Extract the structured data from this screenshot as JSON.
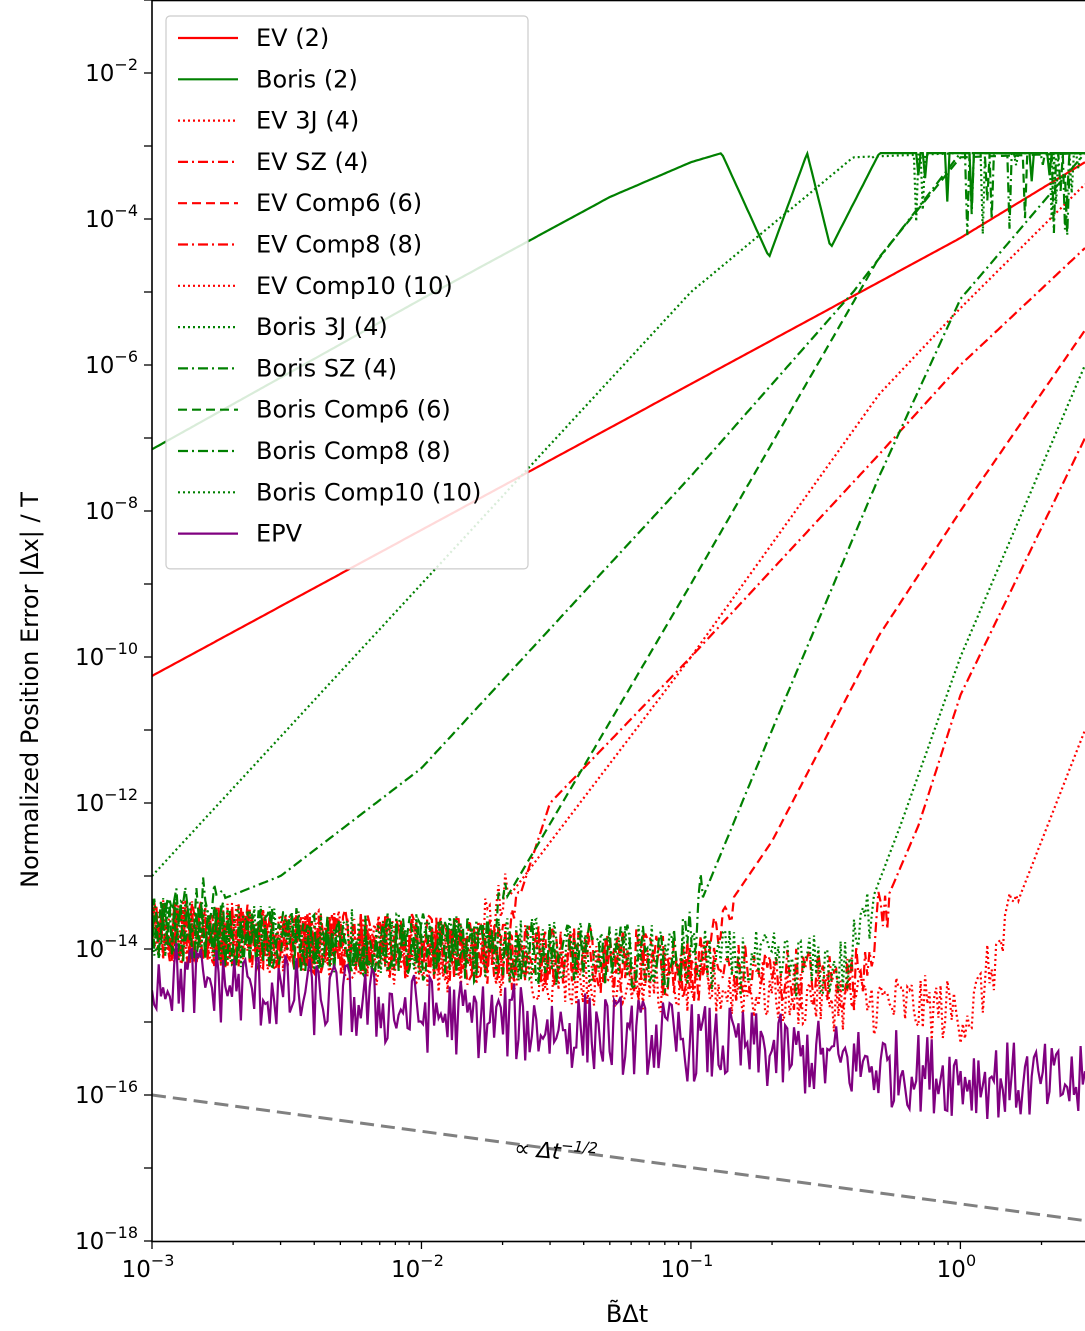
{
  "chart_data": {
    "type": "line",
    "xscale": "log",
    "yscale": "log",
    "xlim": [
      0.001,
      2.9
    ],
    "ylim": [
      1e-18,
      0.1
    ],
    "xlabel": "B̃Δt",
    "ylabel": "Normalized Position Error   |Δx| / T",
    "grid": false,
    "legend_position": "top-left",
    "x_ticks": [
      {
        "value": 0.001,
        "base": "10",
        "exp": "−3"
      },
      {
        "value": 0.01,
        "base": "10",
        "exp": "−2"
      },
      {
        "value": 0.1,
        "base": "10",
        "exp": "−1"
      },
      {
        "value": 1,
        "base": "10",
        "exp": "0"
      }
    ],
    "y_ticks": [
      {
        "value": 0.01,
        "base": "10",
        "exp": "−2"
      },
      {
        "value": 0.0001,
        "base": "10",
        "exp": "−4"
      },
      {
        "value": 1e-06,
        "base": "10",
        "exp": "−6"
      },
      {
        "value": 1e-08,
        "base": "10",
        "exp": "−8"
      },
      {
        "value": 1e-10,
        "base": "10",
        "exp": "−10"
      },
      {
        "value": 1e-12,
        "base": "10",
        "exp": "−12"
      },
      {
        "value": 1e-14,
        "base": "10",
        "exp": "−14"
      },
      {
        "value": 1e-16,
        "base": "10",
        "exp": "−16"
      },
      {
        "value": 1e-18,
        "base": "10",
        "exp": "−18"
      }
    ],
    "series": [
      {
        "name": "EV (2)",
        "color": "#ff0000",
        "dash": "solid",
        "x": [
          0.001,
          0.01,
          0.1,
          1,
          2.9
        ],
        "y": [
          5.5e-11,
          5.5e-09,
          5.5e-07,
          5.5e-05,
          0.0006
        ]
      },
      {
        "name": "Boris (2)",
        "color": "#008000",
        "dash": "solid",
        "x": [
          0.001,
          0.01,
          0.05,
          0.1,
          0.13,
          0.195,
          0.27,
          0.33,
          0.5,
          1,
          2.9
        ],
        "y": [
          7e-08,
          8e-06,
          0.0002,
          0.0006,
          0.0008,
          3e-05,
          0.0008,
          4e-05,
          0.0008,
          0.0008,
          0.0008
        ]
      },
      {
        "name": "EV 3J (4)",
        "color": "#ff0000",
        "dash": "dotted",
        "x": [
          0.001,
          0.015,
          0.1,
          0.5,
          1,
          2.9
        ],
        "y": [
          2e-14,
          1e-14,
          1e-10,
          4e-07,
          6e-06,
          0.0003
        ]
      },
      {
        "name": "EV SZ (4)",
        "color": "#ff0000",
        "dash": "dashdot",
        "x": [
          0.001,
          0.02,
          0.03,
          0.1,
          0.5,
          1,
          2.9
        ],
        "y": [
          2e-14,
          1e-14,
          1e-12,
          1e-10,
          6e-08,
          1e-06,
          4e-05
        ]
      },
      {
        "name": "EV Comp6 (6)",
        "color": "#ff0000",
        "dash": "dashed",
        "x": [
          0.001,
          0.1,
          0.2,
          0.5,
          1,
          2.9
        ],
        "y": [
          2e-14,
          7e-15,
          3e-13,
          2e-10,
          1e-08,
          3e-06
        ]
      },
      {
        "name": "EV Comp8 (8)",
        "color": "#ff0000",
        "dash": "dashdot",
        "x": [
          0.001,
          0.4,
          0.7,
          1,
          2.9
        ],
        "y": [
          2e-14,
          4e-15,
          5e-13,
          3e-11,
          1e-07
        ]
      },
      {
        "name": "EV Comp10 (10)",
        "color": "#ff0000",
        "dash": "dotted",
        "x": [
          0.001,
          1.1,
          1.5,
          2.9
        ],
        "y": [
          2e-14,
          1.5e-15,
          2e-14,
          1e-11
        ]
      },
      {
        "name": "Boris 3J (4)",
        "color": "#008000",
        "dash": "dotted",
        "x": [
          0.001,
          0.01,
          0.1,
          0.4,
          1,
          2.9
        ],
        "y": [
          1e-13,
          1e-09,
          1e-05,
          0.0007,
          0.0008,
          0.0008
        ]
      },
      {
        "name": "Boris SZ (4)",
        "color": "#008000",
        "dash": "dashdot",
        "x": [
          0.001,
          0.003,
          0.01,
          0.1,
          0.4,
          1,
          2.9
        ],
        "y": [
          2e-14,
          1e-13,
          3e-12,
          3e-08,
          1e-05,
          0.0008,
          0.0008
        ]
      },
      {
        "name": "Boris Comp6 (6)",
        "color": "#008000",
        "dash": "dashed",
        "x": [
          0.001,
          0.016,
          0.1,
          0.5,
          1,
          2.9
        ],
        "y": [
          2e-14,
          1e-14,
          1e-09,
          3e-05,
          0.0007,
          0.0008
        ]
      },
      {
        "name": "Boris Comp8 (8)",
        "color": "#008000",
        "dash": "dashdot",
        "x": [
          0.001,
          0.09,
          0.2,
          0.5,
          1,
          2.9
        ],
        "y": [
          2e-14,
          8e-15,
          1e-11,
          3e-08,
          8e-06,
          0.0008
        ]
      },
      {
        "name": "Boris Comp10 (10)",
        "color": "#008000",
        "dash": "dotted",
        "x": [
          0.001,
          0.38,
          0.6,
          1,
          2.9
        ],
        "y": [
          2e-14,
          6e-15,
          5e-13,
          1e-10,
          1e-06
        ]
      },
      {
        "name": "EPV",
        "color": "#800080",
        "dash": "solid",
        "x": [
          0.001,
          0.01,
          0.1,
          1,
          2.9
        ],
        "y": [
          5e-15,
          1.5e-15,
          6e-16,
          2e-16,
          1.5e-16
        ]
      }
    ],
    "reference_line": {
      "color": "#808080",
      "dash": "dashed",
      "x": [
        0.001,
        2.9
      ],
      "y": [
        1e-16,
        1.9e-18
      ]
    },
    "annotation": {
      "text_prefix": "∝ Δt",
      "text_exp": "−1/2",
      "x": 0.022,
      "y": 1.5e-17
    }
  }
}
